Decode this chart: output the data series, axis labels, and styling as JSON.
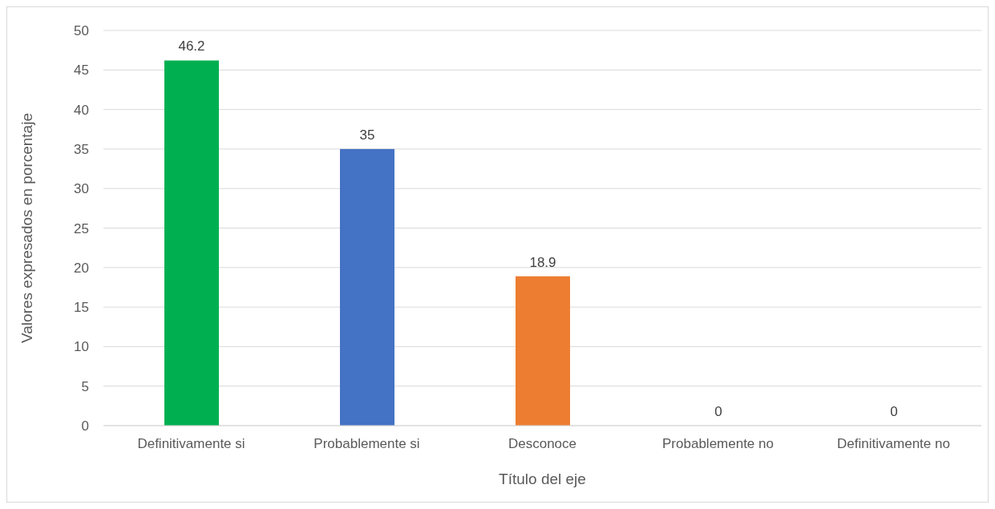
{
  "chart_data": {
    "type": "bar",
    "xlabel": "Título del eje",
    "ylabel": "Valores expresados en porcentaje",
    "categories": [
      "Definitivamente si",
      "Probablemente si",
      "Desconoce",
      "Probablemente no",
      "Definitivamente no"
    ],
    "values": [
      46.2,
      35,
      18.9,
      0,
      0
    ],
    "colors": [
      "#00b050",
      "#4472c4",
      "#ed7d31",
      "#a5a5a5",
      "#ffc000"
    ],
    "ylim": [
      0,
      50
    ],
    "yticks": [
      0,
      5,
      10,
      15,
      20,
      25,
      30,
      35,
      40,
      45,
      50
    ],
    "grid": "y",
    "data_labels": true
  }
}
